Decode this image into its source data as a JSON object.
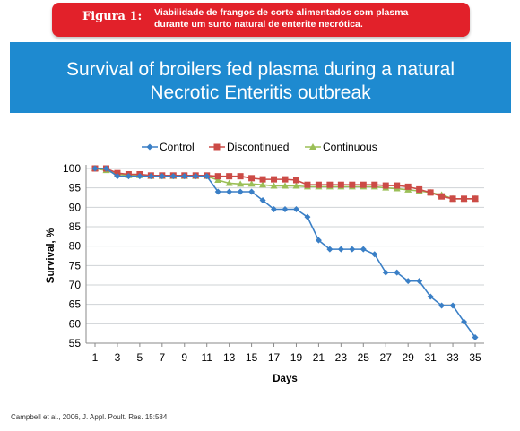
{
  "figure": {
    "label": "Figura 1:",
    "caption_line1": "Viabilidade de frangos de corte alimentados com plasma",
    "caption_line2": "durante um surto natural de enterite necrótica."
  },
  "chart_title": {
    "line1": "Survival of broilers fed plasma during a natural",
    "line2": "Necrotic Enteritis outbreak"
  },
  "source": "Campbell et al., 2006,  J. Appl. Poult. Res. 15:584",
  "chart_data": {
    "type": "line",
    "xlabel": "Days",
    "ylabel": "Survival, %",
    "ylim": [
      55,
      100
    ],
    "yticks": [
      100,
      95,
      90,
      85,
      80,
      75,
      70,
      65,
      60,
      55
    ],
    "xticks": [
      1,
      3,
      5,
      7,
      9,
      11,
      13,
      15,
      17,
      19,
      21,
      23,
      25,
      27,
      29,
      31,
      33,
      35
    ],
    "xlim": [
      1,
      35
    ],
    "grid": "horizontal",
    "legend_position": "top",
    "x": [
      1,
      2,
      3,
      4,
      5,
      6,
      7,
      8,
      9,
      10,
      11,
      12,
      13,
      14,
      15,
      16,
      17,
      18,
      19,
      20,
      21,
      22,
      23,
      24,
      25,
      26,
      27,
      28,
      29,
      30,
      31,
      32,
      33,
      34,
      35
    ],
    "series": [
      {
        "name": "Control",
        "color": "#3a7fc6",
        "marker": "diamond",
        "values": [
          100,
          100,
          98,
          98,
          98,
          98,
          98,
          98,
          98,
          98,
          98,
          94,
          94,
          94,
          94,
          91.8,
          89.5,
          89.5,
          89.5,
          87.5,
          81.5,
          79.2,
          79.2,
          79.2,
          79.2,
          77.9,
          73.2,
          73.2,
          71,
          71,
          67,
          64.7,
          64.7,
          60.5,
          56.5
        ]
      },
      {
        "name": "Discontinued",
        "color": "#cc4b46",
        "marker": "square",
        "values": [
          100,
          100,
          98.8,
          98.5,
          98.5,
          98.2,
          98.2,
          98.2,
          98.2,
          98.2,
          98.2,
          98,
          98,
          98,
          97.5,
          97.2,
          97.2,
          97.2,
          97,
          95.8,
          95.8,
          95.8,
          95.8,
          95.8,
          95.8,
          95.8,
          95.6,
          95.6,
          95.3,
          94.6,
          93.8,
          92.8,
          92.2,
          92.2,
          92.2
        ]
      },
      {
        "name": "Continuous",
        "color": "#9bbf57",
        "marker": "triangle",
        "values": [
          100,
          99.5,
          98.5,
          98.2,
          98.2,
          98,
          98,
          98,
          98,
          98,
          98,
          97,
          96.2,
          96,
          96,
          95.8,
          95.5,
          95.5,
          95.5,
          95.3,
          95.3,
          95.3,
          95.3,
          95.3,
          95.3,
          95.3,
          95,
          94.8,
          94.5,
          94.2,
          93.8,
          93.2,
          92.2,
          92.2,
          92.2
        ]
      }
    ]
  }
}
